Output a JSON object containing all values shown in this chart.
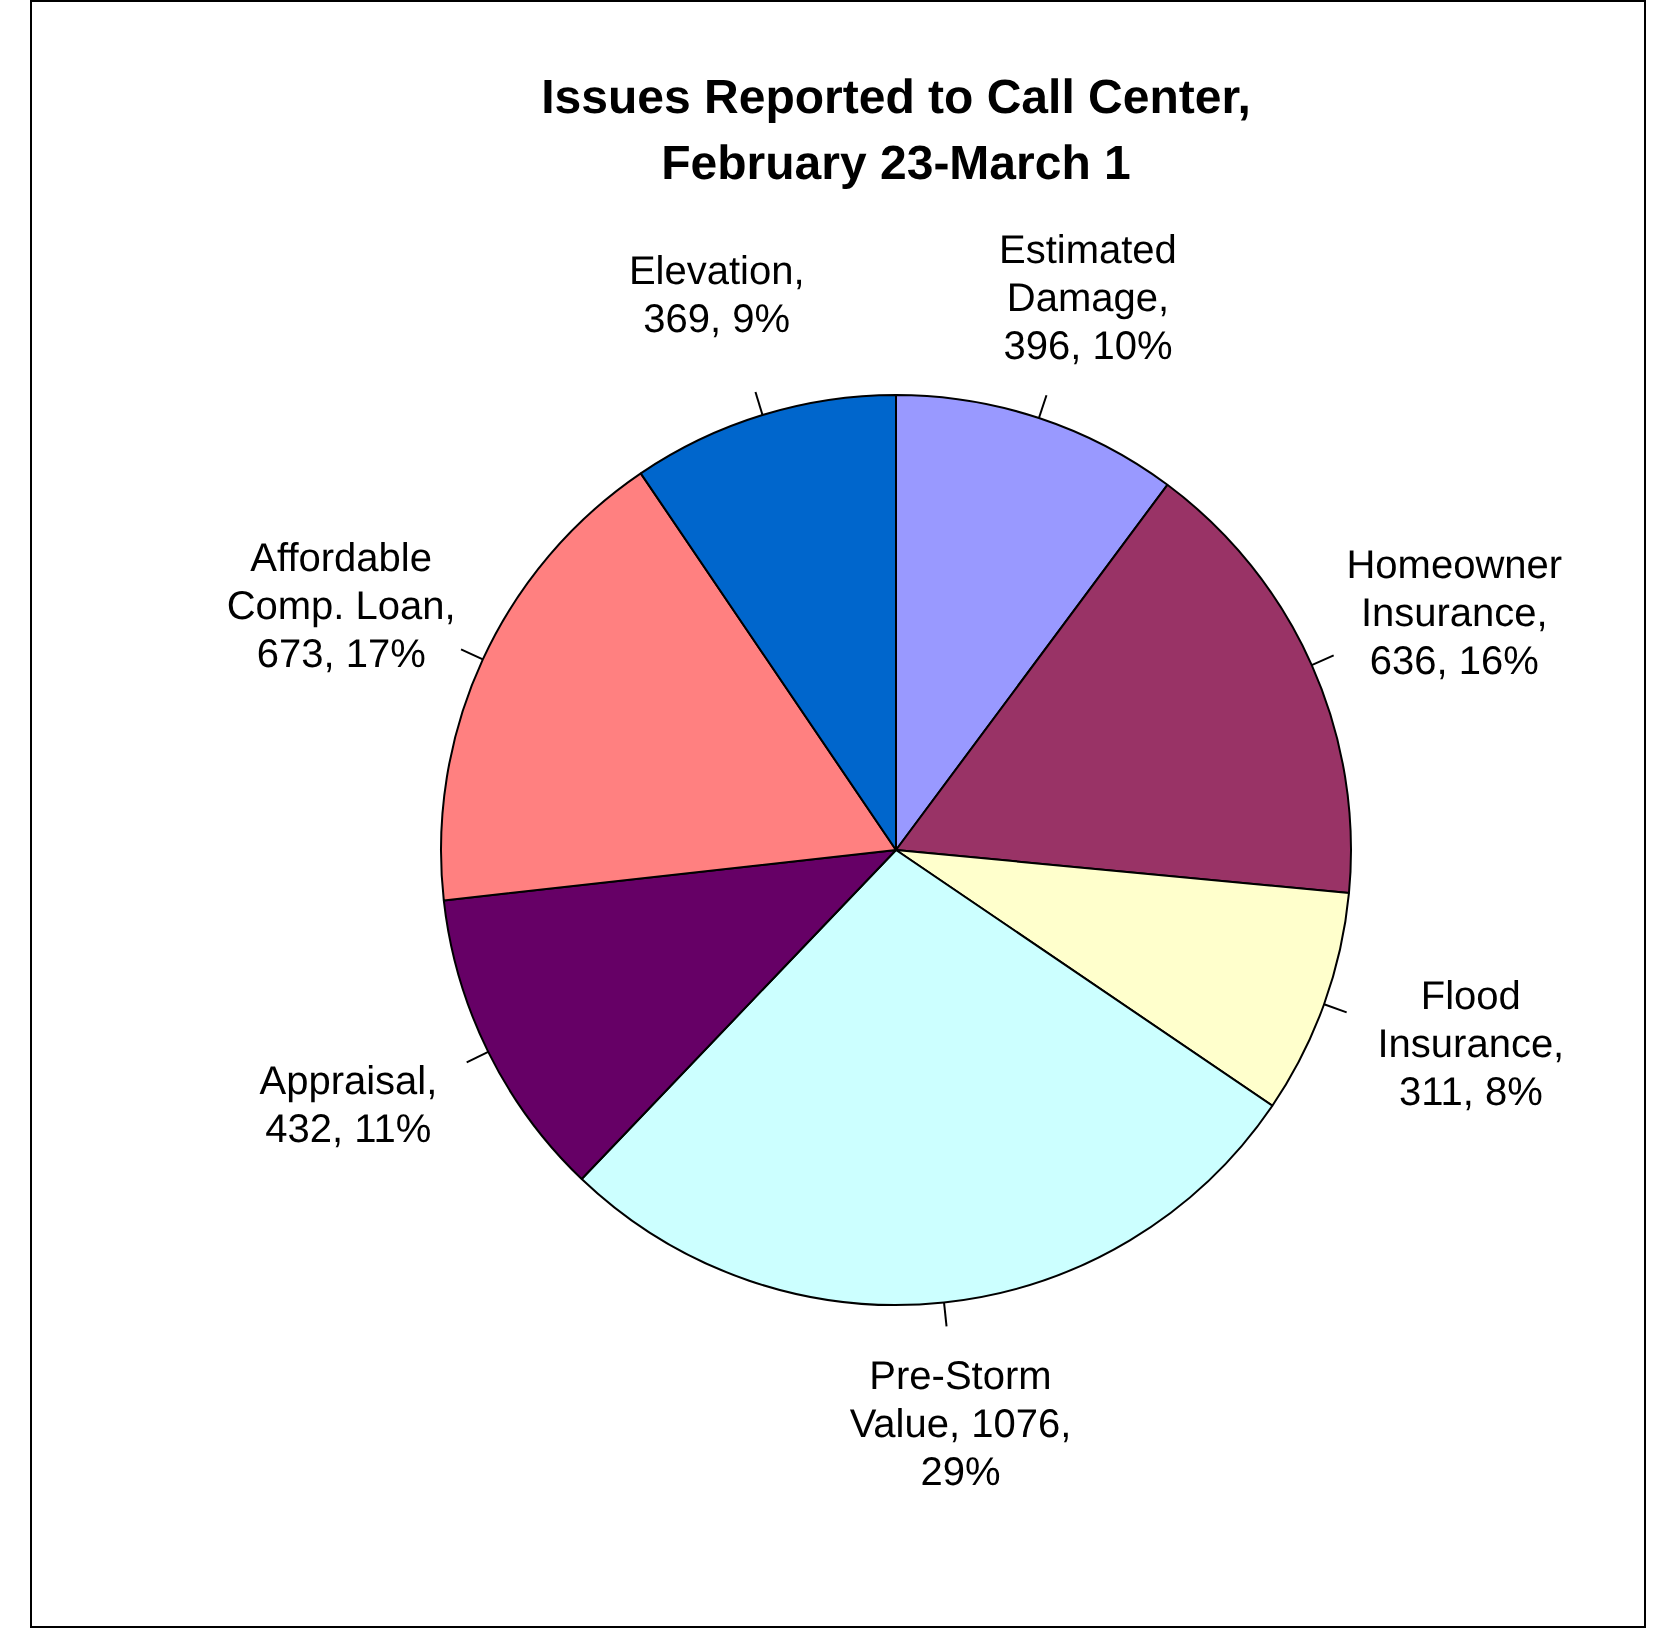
{
  "chart_data": {
    "type": "pie",
    "title": "Issues Reported to Call Center, February 23-March 1",
    "categories": [
      "Estimated Damage",
      "Homeowner Insurance",
      "Flood Insurance",
      "Pre-Storm Value",
      "Appraisal",
      "Affordable Comp. Loan",
      "Elevation"
    ],
    "values": [
      396,
      636,
      311,
      1076,
      432,
      673,
      369
    ],
    "value_labels": [
      ", 396, 10%",
      ", 636, 16%",
      ", 311, 8%",
      ", 1076, 29%",
      ", 432, 11%",
      ", 673, 17%",
      ", 369, 9%"
    ],
    "colors": [
      "#9999ff",
      "#993366",
      "#ffffcc",
      "#ccffff",
      "#660066",
      "#ff8080",
      "#0066cc"
    ],
    "legend": false
  }
}
